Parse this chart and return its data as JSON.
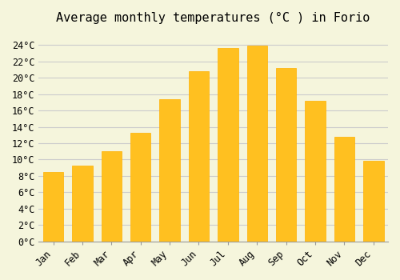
{
  "title": "Average monthly temperatures (°C ) in Forio",
  "months": [
    "Jan",
    "Feb",
    "Mar",
    "Apr",
    "May",
    "Jun",
    "Jul",
    "Aug",
    "Sep",
    "Oct",
    "Nov",
    "Dec"
  ],
  "values": [
    8.5,
    9.3,
    11.0,
    13.3,
    17.4,
    20.8,
    23.6,
    23.9,
    21.2,
    17.2,
    12.8,
    9.8
  ],
  "bar_color": "#FFC020",
  "bar_edge_color": "#FFB000",
  "background_color": "#F5F5DC",
  "grid_color": "#CCCCCC",
  "y_ticks": [
    0,
    2,
    4,
    6,
    8,
    10,
    12,
    14,
    16,
    18,
    20,
    22,
    24
  ],
  "ylim": [
    0,
    25.5
  ],
  "title_fontsize": 11,
  "tick_fontsize": 8.5,
  "font_family": "monospace"
}
